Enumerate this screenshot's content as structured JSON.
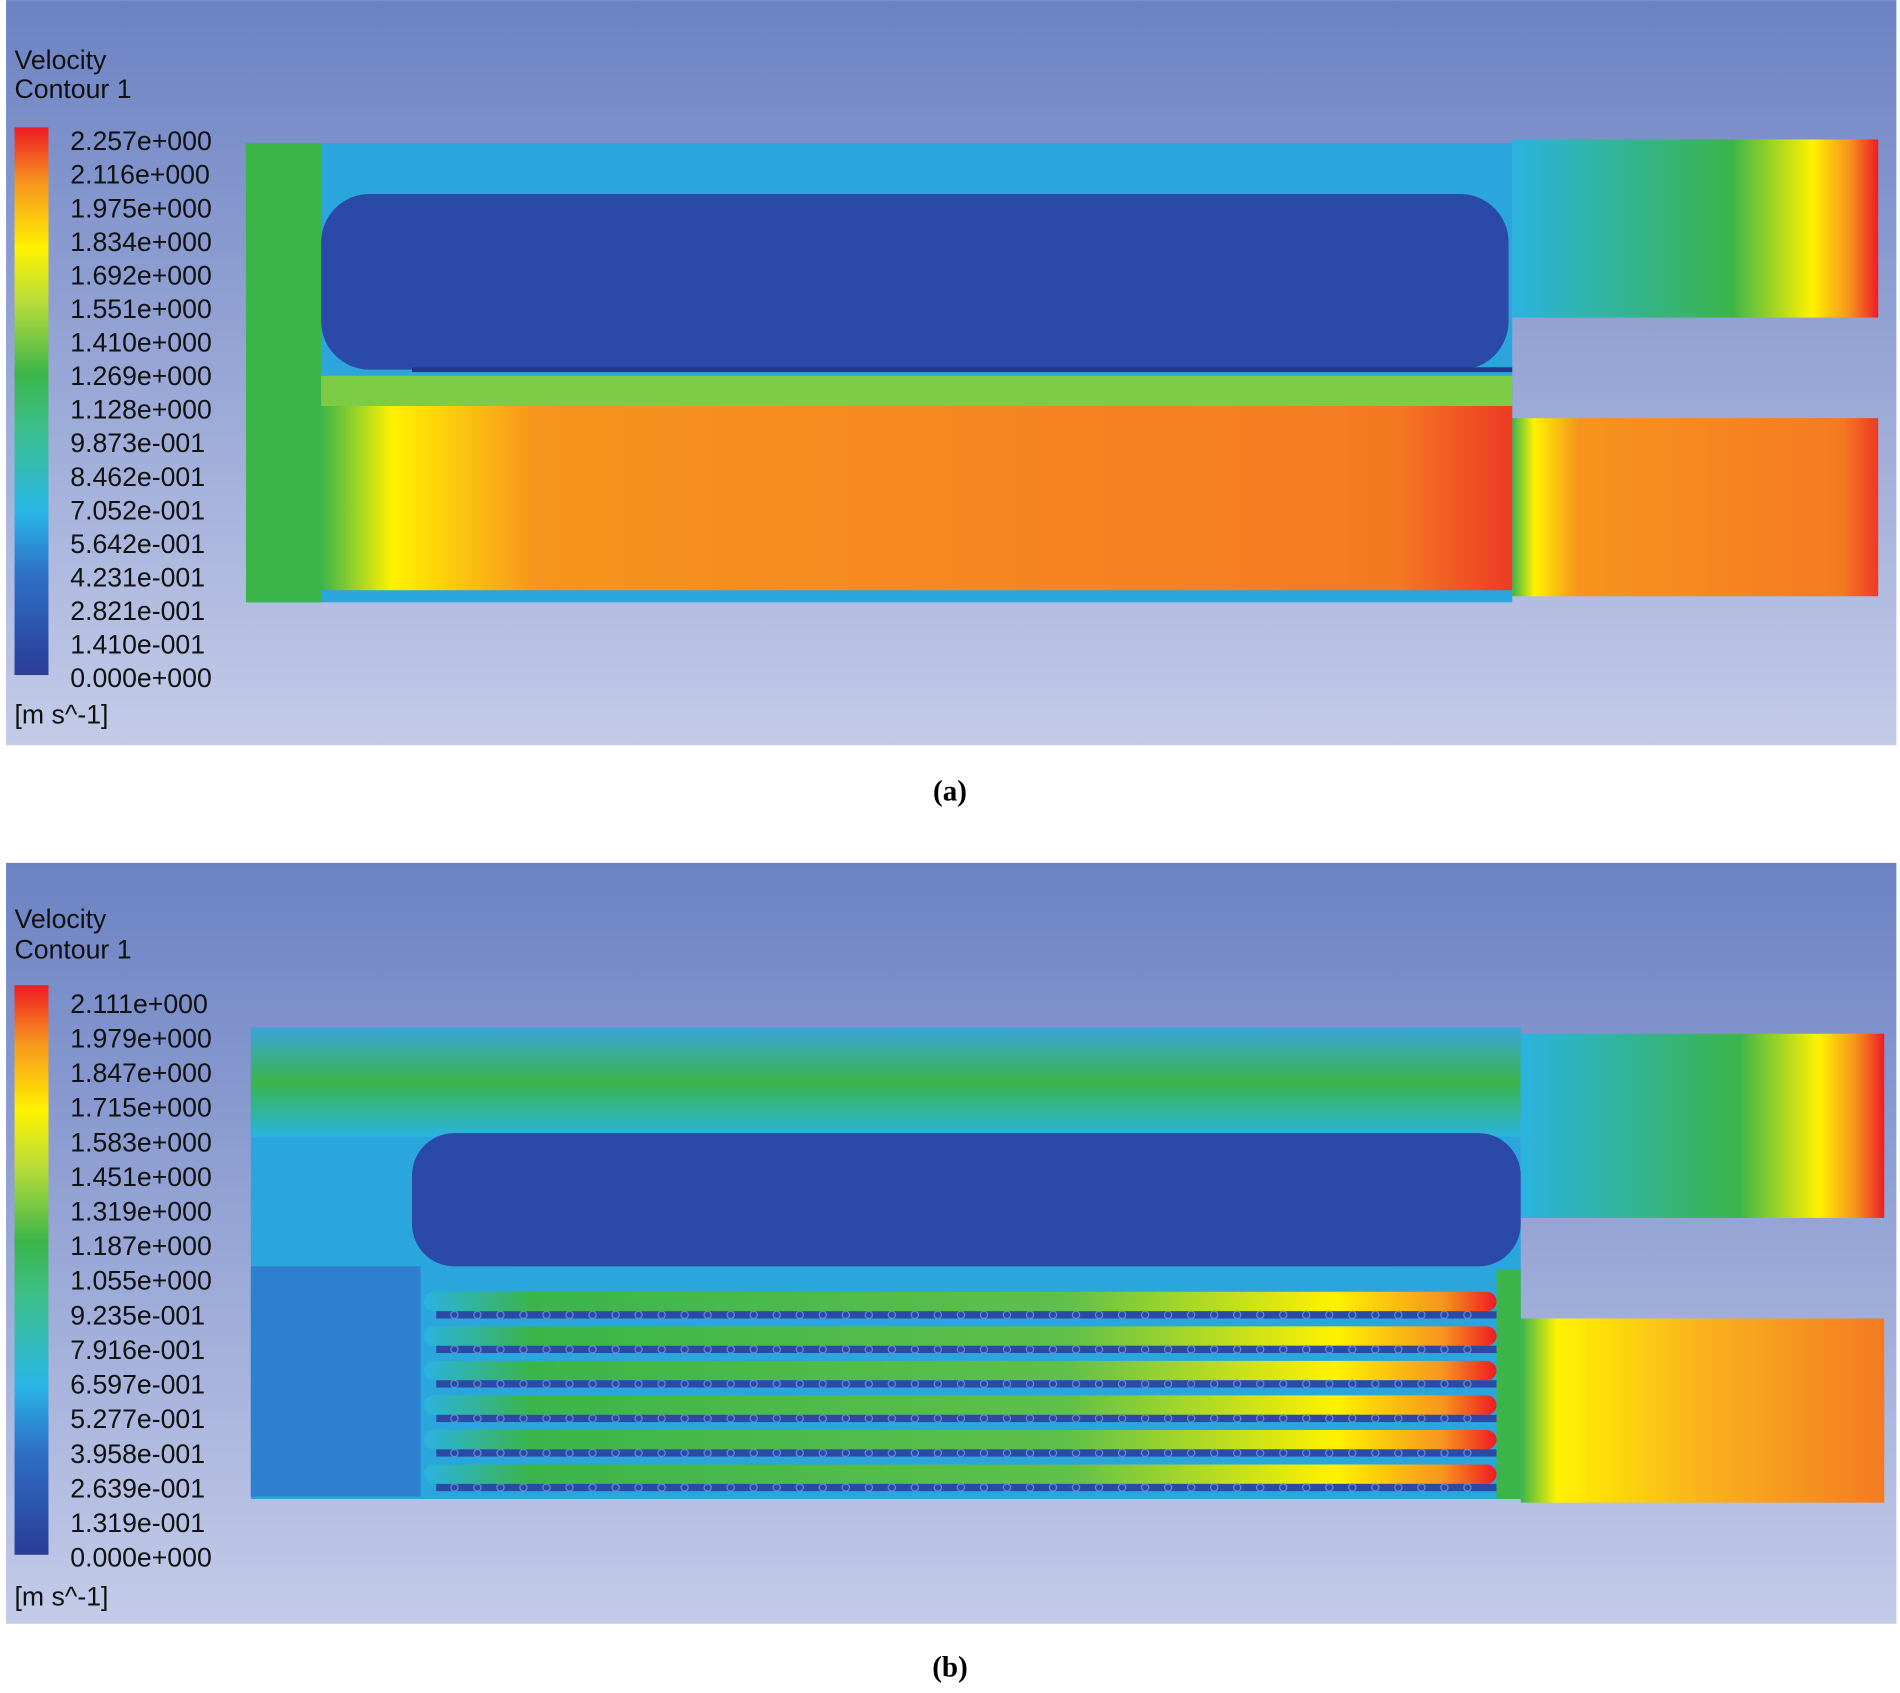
{
  "panels": [
    {
      "legend": {
        "title": "Velocity",
        "subtitle": "Contour 1",
        "levels": [
          "2.257e+000",
          "2.116e+000",
          "1.975e+000",
          "1.834e+000",
          "1.692e+000",
          "1.551e+000",
          "1.410e+000",
          "1.269e+000",
          "1.128e+000",
          "9.873e-001",
          "8.462e-001",
          "7.052e-001",
          "5.642e-001",
          "4.231e-001",
          "2.821e-001",
          "1.410e-001",
          "0.000e+000"
        ],
        "unit": "[m s^-1]"
      },
      "caption": "(a)"
    },
    {
      "legend": {
        "title": "Velocity",
        "subtitle": "Contour 1",
        "levels": [
          "2.111e+000",
          "1.979e+000",
          "1.847e+000",
          "1.715e+000",
          "1.583e+000",
          "1.451e+000",
          "1.319e+000",
          "1.187e+000",
          "1.055e+000",
          "9.235e-001",
          "7.916e-001",
          "6.597e-001",
          "5.277e-001",
          "3.958e-001",
          "2.639e-001",
          "1.319e-001",
          "0.000e+000"
        ],
        "unit": "[m s^-1]"
      },
      "caption": "(b)"
    }
  ]
}
